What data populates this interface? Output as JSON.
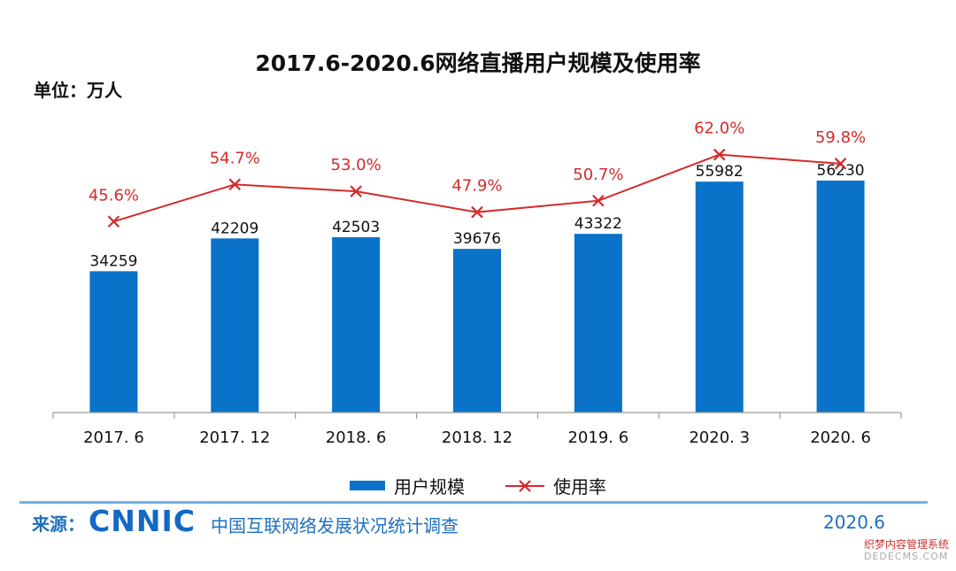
{
  "header": {
    "title": "2017.6-2020.6网络直播用户规模及使用率",
    "unit": "单位：万人"
  },
  "chart_data": {
    "type": "bar",
    "categories": [
      "2017. 6",
      "2017. 12",
      "2018. 6",
      "2018. 12",
      "2019. 6",
      "2020. 3",
      "2020. 6"
    ],
    "series": [
      {
        "name": "用户规模",
        "type": "bar",
        "values": [
          34259,
          42209,
          42503,
          39676,
          43322,
          55982,
          56230
        ],
        "color": "#0a72c8"
      },
      {
        "name": "使用率",
        "type": "line",
        "values": [
          45.6,
          54.7,
          53.0,
          47.9,
          50.7,
          62.0,
          59.8
        ],
        "labels": [
          "45.6%",
          "54.7%",
          "53.0%",
          "47.9%",
          "50.7%",
          "62.0%",
          "59.8%"
        ],
        "color": "#d42a2a"
      }
    ],
    "legend_position": "bottom",
    "grid": false
  },
  "legend": {
    "bar_label": "用户规模",
    "line_label": "使用率"
  },
  "footer": {
    "source_label": "来源：",
    "logo_text": "CNNIC",
    "source_text": "中国互联网络发展状况统计调查",
    "date": "2020.6"
  },
  "watermark": {
    "line1": "织梦内容管理系统",
    "line2": "DEDECMS.COM"
  }
}
